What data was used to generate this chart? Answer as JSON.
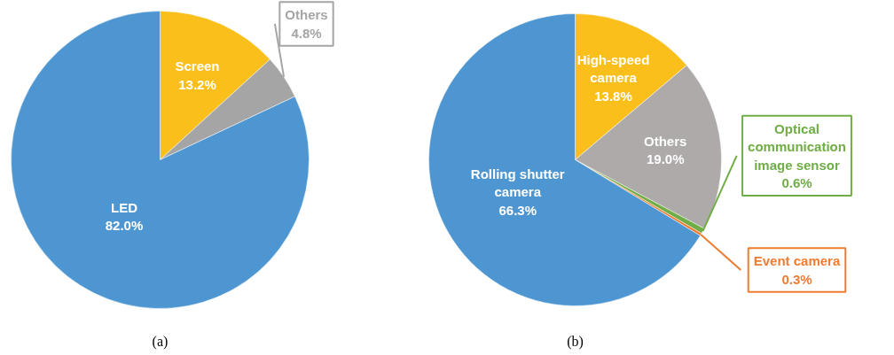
{
  "chart_data": [
    {
      "type": "pie",
      "title": "(a)",
      "categories": [
        "Screen",
        "Others",
        "LED"
      ],
      "values": [
        13.2,
        4.8,
        82.0
      ],
      "colors": [
        "#fbbf1c",
        "#a5a5a5",
        "#4e96d1"
      ],
      "value_labels": [
        "13.2%",
        "4.8%",
        "82.0%"
      ]
    },
    {
      "type": "pie",
      "title": "(b)",
      "categories": [
        "High-speed\ncamera",
        "Others",
        "Optical\ncommunication\nimage sensor",
        "Event camera",
        "Rolling shutter\ncamera"
      ],
      "values": [
        13.8,
        19.0,
        0.6,
        0.3,
        66.3
      ],
      "colors": [
        "#fbbf1c",
        "#aeaaaa",
        "#70ad47",
        "#ed7d31",
        "#4e96d1"
      ],
      "value_labels": [
        "13.8%",
        "19.0%",
        "0.6%",
        "0.3%",
        "66.3%"
      ]
    }
  ]
}
